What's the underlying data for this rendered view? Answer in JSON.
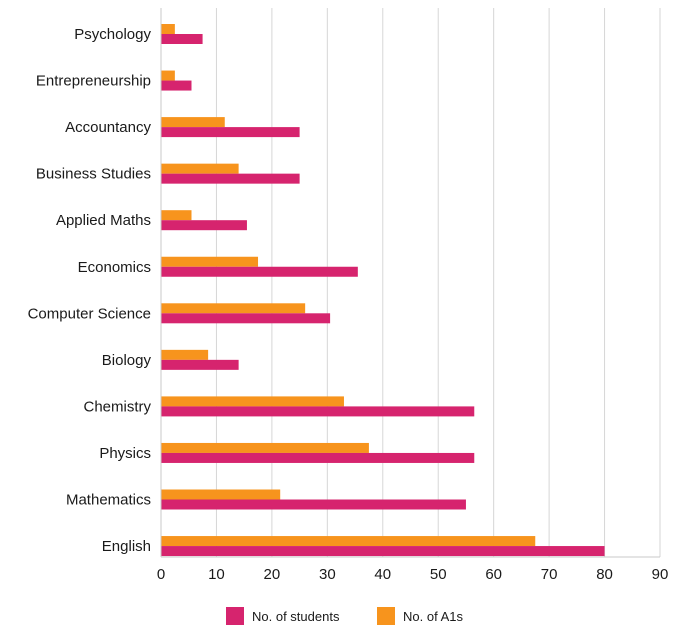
{
  "chart_data": {
    "type": "bar",
    "orientation": "horizontal",
    "categories": [
      "Psychology",
      "Entrepreneurship",
      "Accountancy",
      "Business Studies",
      "Applied Maths",
      "Economics",
      "Computer Science",
      "Biology",
      "Chemistry",
      "Physics",
      "Mathematics",
      "English"
    ],
    "series": [
      {
        "name": "No. of A1s",
        "color": "#f7941d",
        "values": [
          2.5,
          2.5,
          11.5,
          14,
          5.5,
          17.5,
          26,
          8.5,
          33,
          37.5,
          21.5,
          67.5
        ]
      },
      {
        "name": "No. of students",
        "color": "#d6246e",
        "values": [
          7.5,
          5.5,
          25,
          25,
          15.5,
          35.5,
          30.5,
          14,
          56.5,
          56.5,
          55,
          80
        ]
      }
    ],
    "xlim": [
      0,
      90
    ],
    "xticks": [
      "0",
      "10",
      "20",
      "30",
      "40",
      "50",
      "60",
      "70",
      "80",
      "90"
    ],
    "grid": "vertical",
    "legend": {
      "placement": "bottom",
      "order": [
        "No. of students",
        "No. of A1s"
      ]
    }
  }
}
